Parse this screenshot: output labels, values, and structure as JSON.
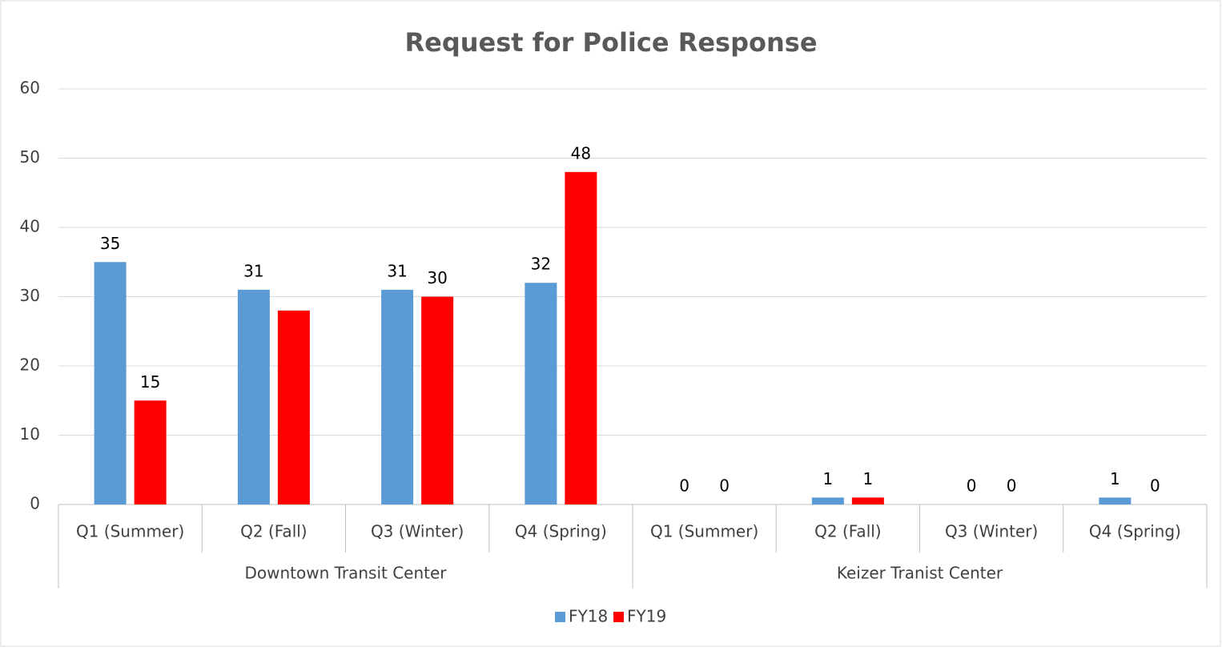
{
  "chart_data": {
    "type": "bar",
    "title": "Request for Police Response",
    "groups": [
      {
        "name": "Downtown Transit Center",
        "categories": [
          "Q1 (Summer)",
          "Q2 (Fall)",
          "Q3 (Winter)",
          "Q4 (Spring)"
        ]
      },
      {
        "name": "Keizer Tranist Center",
        "categories": [
          "Q1 (Summer)",
          "Q2 (Fall)",
          "Q3 (Winter)",
          "Q4 (Spring)"
        ]
      }
    ],
    "series": [
      {
        "name": "FY18",
        "color": "#5b9bd5",
        "values": [
          35,
          31,
          31,
          32,
          0,
          1,
          0,
          1
        ]
      },
      {
        "name": "FY19",
        "color": "#ff0000",
        "values": [
          15,
          28,
          30,
          48,
          0,
          1,
          0,
          0
        ],
        "value_labels": [
          "15",
          null,
          "30",
          "48",
          "0",
          "1",
          "0",
          "0"
        ]
      }
    ],
    "ylim": [
      0,
      60
    ],
    "yticks": [
      0,
      10,
      20,
      30,
      40,
      50,
      60
    ],
    "grid": true,
    "data_labels": true,
    "legend": "bottom"
  }
}
